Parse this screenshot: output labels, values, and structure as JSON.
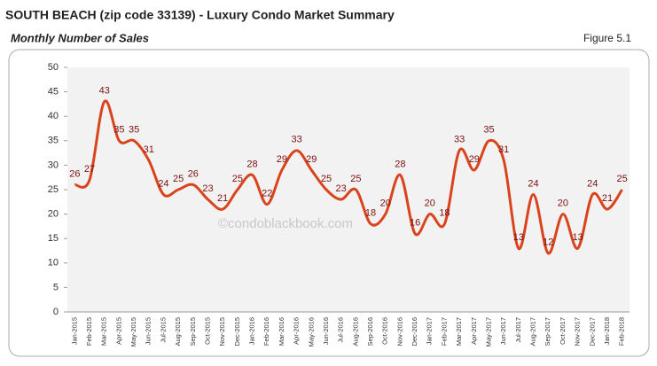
{
  "chart_data": {
    "type": "line",
    "title": "SOUTH BEACH (zip code 33139) - Luxury Condo Market Summary",
    "subtitle": "Monthly Number of Sales",
    "figure_label": "Figure 5.1",
    "watermark": "©condoblackbook.com",
    "categories": [
      "Jan-2015",
      "Feb-2015",
      "Mar-2015",
      "Apr-2015",
      "May-2015",
      "Jun-2015",
      "Jul-2015",
      "Aug-2015",
      "Sep-2015",
      "Oct-2015",
      "Nov-2015",
      "Dec-2015",
      "Jan-2016",
      "Feb-2016",
      "Mar-2016",
      "Apr-2016",
      "May-2016",
      "Jun-2016",
      "Jul-2016",
      "Aug-2016",
      "Sep-2016",
      "Oct-2016",
      "Nov-2016",
      "Dec-2016",
      "Jan-2017",
      "Feb-2017",
      "Mar-2017",
      "Apr-2017",
      "May-2017",
      "Jun-2017",
      "Jul-2017",
      "Aug-2017",
      "Sep-2017",
      "Oct-2017",
      "Nov-2017",
      "Dec-2017",
      "Jan-2018",
      "Feb-2018"
    ],
    "series": [
      {
        "name": "Monthly Number of Sales",
        "color": "#d9441c",
        "values": [
          26,
          27,
          43,
          35,
          35,
          31,
          24,
          25,
          26,
          23,
          21,
          25,
          28,
          22,
          29,
          33,
          29,
          25,
          23,
          25,
          18,
          20,
          28,
          16,
          20,
          18,
          33,
          29,
          35,
          31,
          13,
          24,
          12,
          20,
          13,
          24,
          21,
          25
        ]
      }
    ],
    "ylim": [
      0,
      50
    ],
    "yticks": [
      0,
      5,
      10,
      15,
      20,
      25,
      30,
      35,
      40,
      45,
      50
    ],
    "grid": false
  }
}
